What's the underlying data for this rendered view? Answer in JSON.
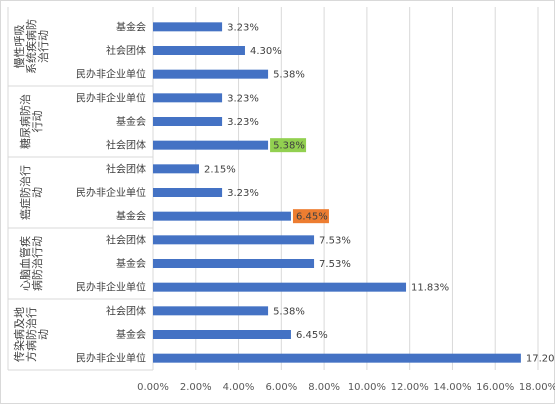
{
  "chart_data": {
    "type": "bar",
    "orientation": "horizontal",
    "grid": true,
    "xlim": [
      0,
      18
    ],
    "x_ticks": [
      "0.00%",
      "2.00%",
      "4.00%",
      "6.00%",
      "8.00%",
      "10.00%",
      "12.00%",
      "14.00%",
      "16.00%",
      "18.00%"
    ],
    "groups": [
      {
        "label": "慢性呼吸系统疾病防治行动",
        "label_lines": [
          "慢性呼吸",
          "系统疾病防",
          "治行动"
        ],
        "bars": [
          {
            "category": "基金会",
            "value": 3.23,
            "label": "3.23%"
          },
          {
            "category": "社会团体",
            "value": 4.3,
            "label": "4.30%"
          },
          {
            "category": "民办非企业单位",
            "value": 5.38,
            "label": "5.38%"
          }
        ]
      },
      {
        "label": "糖尿病防治行动",
        "label_lines": [
          "糖尿病防治",
          "行动"
        ],
        "bars": [
          {
            "category": "民办非企业单位",
            "value": 3.23,
            "label": "3.23%"
          },
          {
            "category": "基金会",
            "value": 3.23,
            "label": "3.23%"
          },
          {
            "category": "社会团体",
            "value": 5.38,
            "label": "5.38%",
            "highlight": "#92d050"
          }
        ]
      },
      {
        "label": "癌症防治行动",
        "label_lines": [
          "癌症防治行",
          "动"
        ],
        "bars": [
          {
            "category": "社会团体",
            "value": 2.15,
            "label": "2.15%"
          },
          {
            "category": "民办非企业单位",
            "value": 3.23,
            "label": "3.23%"
          },
          {
            "category": "基金会",
            "value": 6.45,
            "label": "6.45%",
            "highlight": "#ed7d31"
          }
        ]
      },
      {
        "label": "心脑血管疾病防治行动",
        "label_lines": [
          "心脑血管疾",
          "病防治行动"
        ],
        "bars": [
          {
            "category": "社会团体",
            "value": 7.53,
            "label": "7.53%"
          },
          {
            "category": "基金会",
            "value": 7.53,
            "label": "7.53%"
          },
          {
            "category": "民办非企业单位",
            "value": 11.83,
            "label": "11.83%"
          }
        ]
      },
      {
        "label": "传染病及地方病防治行动",
        "label_lines": [
          "传染病及地",
          "方病防治行",
          "动"
        ],
        "bars": [
          {
            "category": "社会团体",
            "value": 5.38,
            "label": "5.38%"
          },
          {
            "category": "基金会",
            "value": 6.45,
            "label": "6.45%"
          },
          {
            "category": "民办非企业单位",
            "value": 17.2,
            "label": "17.20%"
          }
        ]
      }
    ],
    "colors": {
      "bar": "#4472c4",
      "grid": "#d9d9d9"
    }
  }
}
